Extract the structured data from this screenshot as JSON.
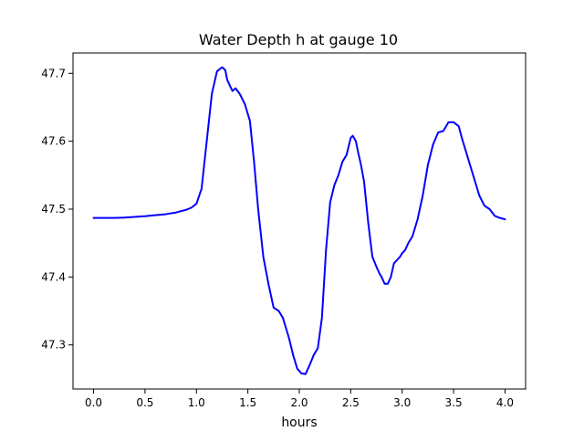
{
  "colors": {
    "line": "#0000ff",
    "axes": "#000000",
    "background": "#ffffff"
  },
  "chart_data": {
    "type": "line",
    "title": "Water Depth h at gauge 10",
    "xlabel": "hours",
    "ylabel": "",
    "xlim": [
      -0.2,
      4.2
    ],
    "ylim": [
      47.235,
      47.73
    ],
    "xticks": [
      0.0,
      0.5,
      1.0,
      1.5,
      2.0,
      2.5,
      3.0,
      3.5,
      4.0
    ],
    "xtick_labels": [
      "0.0",
      "0.5",
      "1.0",
      "1.5",
      "2.0",
      "2.5",
      "3.0",
      "3.5",
      "4.0"
    ],
    "yticks": [
      47.3,
      47.4,
      47.5,
      47.6,
      47.7
    ],
    "ytick_labels": [
      "47.3",
      "47.4",
      "47.5",
      "47.6",
      "47.7"
    ],
    "grid": false,
    "legend": null,
    "series": [
      {
        "color": "#0000ff",
        "x": [
          0.0,
          0.1,
          0.2,
          0.3,
          0.4,
          0.5,
          0.6,
          0.7,
          0.8,
          0.9,
          0.95,
          1.0,
          1.05,
          1.1,
          1.15,
          1.2,
          1.25,
          1.28,
          1.3,
          1.35,
          1.38,
          1.42,
          1.47,
          1.52,
          1.56,
          1.6,
          1.65,
          1.7,
          1.75,
          1.8,
          1.84,
          1.86,
          1.9,
          1.94,
          1.98,
          2.02,
          2.06,
          2.1,
          2.14,
          2.18,
          2.22,
          2.26,
          2.3,
          2.34,
          2.38,
          2.42,
          2.46,
          2.5,
          2.52,
          2.55,
          2.57,
          2.6,
          2.63,
          2.67,
          2.71,
          2.75,
          2.78,
          2.8,
          2.83,
          2.86,
          2.89,
          2.92,
          2.95,
          2.98,
          3.0,
          3.03,
          3.06,
          3.1,
          3.15,
          3.2,
          3.25,
          3.3,
          3.35,
          3.4,
          3.45,
          3.5,
          3.55,
          3.58,
          3.62,
          3.66,
          3.7,
          3.75,
          3.8,
          3.85,
          3.9,
          3.95,
          4.0
        ],
        "y": [
          47.487,
          47.487,
          47.487,
          47.4875,
          47.4885,
          47.4895,
          47.491,
          47.4925,
          47.495,
          47.499,
          47.502,
          47.508,
          47.53,
          47.6,
          47.67,
          47.703,
          47.709,
          47.705,
          47.69,
          47.674,
          47.678,
          47.67,
          47.655,
          47.63,
          47.57,
          47.5,
          47.43,
          47.39,
          47.355,
          47.35,
          47.34,
          47.33,
          47.31,
          47.285,
          47.265,
          47.258,
          47.257,
          47.27,
          47.285,
          47.295,
          47.34,
          47.44,
          47.51,
          47.535,
          47.55,
          47.57,
          47.58,
          47.605,
          47.608,
          47.6,
          47.585,
          47.565,
          47.54,
          47.48,
          47.43,
          47.415,
          47.405,
          47.4,
          47.39,
          47.39,
          47.4,
          47.42,
          47.425,
          47.43,
          47.435,
          47.44,
          47.45,
          47.46,
          47.485,
          47.52,
          47.565,
          47.595,
          47.613,
          47.615,
          47.628,
          47.628,
          47.622,
          47.605,
          47.585,
          47.565,
          47.545,
          47.52,
          47.505,
          47.5,
          47.49,
          47.487,
          47.485
        ]
      }
    ]
  }
}
